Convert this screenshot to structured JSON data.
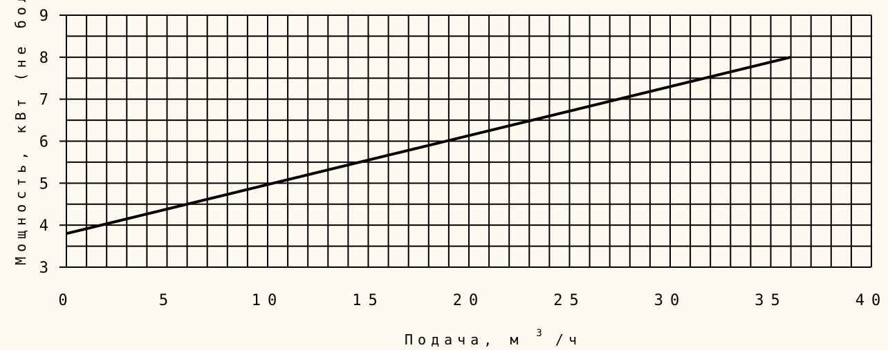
{
  "chart_data": {
    "type": "line",
    "title": "",
    "xlabel": {
      "main": "Подача, м",
      "sup": "3",
      "tail": "/ч"
    },
    "ylabel": "Мощность, кВт (не более)",
    "xlim": [
      0,
      40
    ],
    "ylim": [
      3,
      9
    ],
    "x_ticks": [
      "0",
      "5",
      "10",
      "15",
      "20",
      "25",
      "30",
      "35",
      "40"
    ],
    "y_ticks": [
      "3",
      "4",
      "5",
      "6",
      "7",
      "8",
      "9"
    ],
    "grid": true,
    "x_minor_step": 1,
    "y_minor_step": 0.5,
    "background": "#fffaf0",
    "line_color": "#000000",
    "series": [
      {
        "x": [
          0,
          36
        ],
        "values": [
          3.8,
          8.0
        ]
      }
    ]
  }
}
